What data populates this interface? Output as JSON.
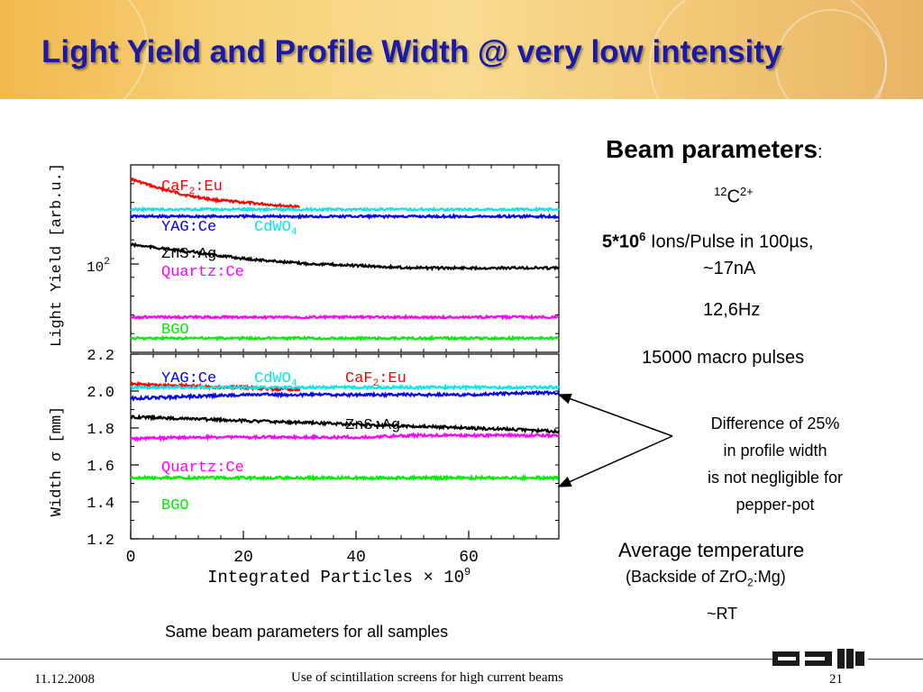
{
  "title": "Light Yield and Profile Width @ very low intensity",
  "beam": {
    "heading": "Beam parameters",
    "heading_colon": ":",
    "ion_mass": "12",
    "ion_sym": "C",
    "ion_charge": "2+",
    "ions_bold": "5*10",
    "ions_exp": "6",
    "ions_rest": " Ions/Pulse in 100µs,",
    "current": "~17nA",
    "rep_rate": "12,6Hz",
    "macro": "15000 macro pulses"
  },
  "note": {
    "line1": "Difference of 25%",
    "line2": "in profile width",
    "line3": "is not negligible for",
    "line4": "pepper-pot"
  },
  "temperature": {
    "label": "Average temperature",
    "sub_pre": "(Backside of ZrO",
    "sub_idx": "2",
    "sub_post": ":Mg)",
    "value": "~RT"
  },
  "caption": "Same beam parameters for all samples",
  "footer": {
    "date": "11.12.2008",
    "center": "Use of scintillation screens for high current beams",
    "page": "21"
  },
  "logo_text": "GSI",
  "chart_data": [
    {
      "type": "line",
      "ylabel": "Light Yield [arb.u.]",
      "ytick_labels": [
        {
          "base": "10",
          "exp": "2"
        }
      ],
      "xlim": [
        0,
        76
      ],
      "series": [
        {
          "name": "CaF2:Eu",
          "color": "#ff0000",
          "x": [
            0,
            5,
            10,
            15,
            20,
            25,
            30
          ],
          "y": [
            144,
            140,
            137,
            135,
            134,
            133,
            132
          ]
        },
        {
          "name": "YAG:Ce",
          "color": "#0000ff",
          "x": [
            0,
            10,
            20,
            30,
            40,
            50,
            60,
            70,
            76
          ],
          "y": [
            128,
            128,
            128,
            128,
            128,
            128,
            128,
            128,
            128
          ]
        },
        {
          "name": "CdWO4",
          "color": "#00e8e8",
          "x": [
            0,
            10,
            20,
            30,
            40,
            50,
            60,
            70,
            76
          ],
          "y": [
            131,
            131,
            131,
            131,
            131,
            131,
            131,
            131,
            131
          ]
        },
        {
          "name": "ZnS:Ag",
          "color": "#000000",
          "x": [
            0,
            10,
            20,
            30,
            40,
            50,
            60,
            70,
            76
          ],
          "y": [
            116,
            113,
            110,
            108,
            107,
            106,
            106,
            106,
            106
          ]
        },
        {
          "name": "Quartz:Ce",
          "color": "#ff00ff",
          "x": [
            0,
            10,
            20,
            30,
            40,
            50,
            60,
            70,
            76
          ],
          "y": [
            85,
            85,
            85,
            85,
            85,
            85,
            85,
            85,
            85
          ]
        },
        {
          "name": "BGO",
          "color": "#00ee00",
          "x": [
            0,
            10,
            20,
            30,
            40,
            50,
            60,
            70,
            76
          ],
          "y": [
            76,
            76,
            76,
            76,
            76,
            76,
            76,
            76,
            76
          ]
        }
      ],
      "legend_labels": [
        {
          "base": "CaF",
          "sub": "2",
          "rest": ":Eu",
          "color": "#ff0000"
        },
        {
          "base": "YAG:Ce",
          "sub": "",
          "rest": "",
          "color": "#0000ff"
        },
        {
          "base": "CdWO",
          "sub": "4",
          "rest": "",
          "color": "#00e8e8"
        },
        {
          "base": "ZnS:Ag",
          "sub": "",
          "rest": "",
          "color": "#000000"
        },
        {
          "base": "Quartz:Ce",
          "sub": "",
          "rest": "",
          "color": "#ff00ff"
        },
        {
          "base": "BGO",
          "sub": "",
          "rest": "",
          "color": "#00ee00"
        }
      ]
    },
    {
      "type": "line",
      "ylabel": "Width σ [mm]",
      "xlabel": "Integrated Particles × 10",
      "xlabel_exp": "9",
      "ylim": [
        1.2,
        2.2
      ],
      "xlim": [
        0,
        76
      ],
      "yticks": [
        1.2,
        1.4,
        1.6,
        1.8,
        2.0,
        2.2
      ],
      "ytick_labels": [
        "1.2",
        "1.4",
        "1.6",
        "1.8",
        "2.0",
        "2.2"
      ],
      "xticks": [
        0,
        20,
        40,
        60
      ],
      "xtick_labels": [
        "0",
        "20",
        "40",
        "60"
      ],
      "series": [
        {
          "name": "CaF2:Eu",
          "color": "#ff0000",
          "x": [
            0,
            5,
            10,
            15,
            20,
            25,
            30
          ],
          "y": [
            2.04,
            2.03,
            2.03,
            2.02,
            2.02,
            2.01,
            2.01
          ]
        },
        {
          "name": "CdWO4",
          "color": "#00e8e8",
          "x": [
            0,
            10,
            20,
            30,
            40,
            50,
            60,
            70,
            76
          ],
          "y": [
            2.02,
            2.02,
            2.02,
            2.02,
            2.02,
            2.02,
            2.02,
            2.02,
            2.02
          ]
        },
        {
          "name": "YAG:Ce",
          "color": "#0000ff",
          "x": [
            0,
            10,
            20,
            30,
            40,
            50,
            60,
            70,
            76
          ],
          "y": [
            1.96,
            1.97,
            1.98,
            1.98,
            1.98,
            1.98,
            1.98,
            1.99,
            1.99
          ]
        },
        {
          "name": "ZnS:Ag",
          "color": "#000000",
          "x": [
            0,
            10,
            20,
            30,
            40,
            50,
            60,
            70,
            76
          ],
          "y": [
            1.86,
            1.85,
            1.84,
            1.83,
            1.82,
            1.81,
            1.8,
            1.79,
            1.78
          ]
        },
        {
          "name": "Quartz:Ce",
          "color": "#ff00ff",
          "x": [
            0,
            10,
            20,
            30,
            40,
            50,
            60,
            70,
            76
          ],
          "y": [
            1.74,
            1.75,
            1.75,
            1.75,
            1.75,
            1.76,
            1.76,
            1.76,
            1.76
          ]
        },
        {
          "name": "BGO",
          "color": "#00ee00",
          "x": [
            0,
            10,
            20,
            30,
            40,
            50,
            60,
            70,
            76
          ],
          "y": [
            1.53,
            1.53,
            1.53,
            1.53,
            1.53,
            1.53,
            1.53,
            1.53,
            1.53
          ]
        }
      ],
      "legend_labels": [
        {
          "base": "YAG:Ce",
          "sub": "",
          "rest": "",
          "color": "#0000ff"
        },
        {
          "base": "CdWO",
          "sub": "4",
          "rest": "",
          "color": "#00e8e8"
        },
        {
          "base": "CaF",
          "sub": "2",
          "rest": ":Eu",
          "color": "#ff0000"
        },
        {
          "base": "ZnS:Ag",
          "sub": "",
          "rest": "",
          "color": "#000000"
        },
        {
          "base": "Quartz:Ce",
          "sub": "",
          "rest": "",
          "color": "#ff00ff"
        },
        {
          "base": "BGO",
          "sub": "",
          "rest": "",
          "color": "#00ee00"
        }
      ]
    }
  ]
}
